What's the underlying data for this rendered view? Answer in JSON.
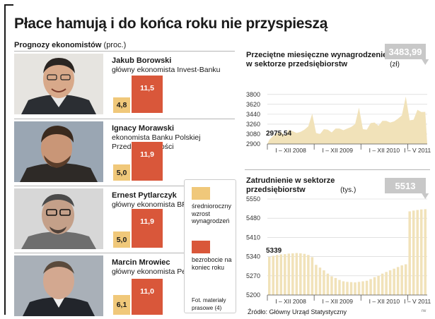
{
  "headline": "Płace hamują i do końca roku nie przyspieszą",
  "forecasts": {
    "title": "Prognozy ekonomistów",
    "unit": "(proc.)",
    "people": [
      {
        "name": "Jakub Borowski",
        "role": "główny ekonomista Invest-Banku",
        "wage_growth": 4.8,
        "unemployment": 11.5,
        "wage_label": "4,8",
        "unemp_label": "11,5"
      },
      {
        "name": "Ignacy Morawski",
        "role": "ekonomista Banku Polskiej Przedsiębiorczości",
        "wage_growth": 5.0,
        "unemployment": 11.9,
        "wage_label": "5,0",
        "unemp_label": "11,9"
      },
      {
        "name": "Ernest Pytlarczyk",
        "role": "główny ekonomista BRE Banku",
        "wage_growth": 5.0,
        "unemployment": 11.9,
        "wage_label": "5,0",
        "unemp_label": "11,9"
      },
      {
        "name": "Marcin Mrowiec",
        "role": "główny ekonomista Pekao SA",
        "wage_growth": 6.1,
        "unemployment": 11.0,
        "wage_label": "6,1",
        "unemp_label": "11,0"
      }
    ],
    "legend": {
      "wage": "średnioroczny wzrost wynagrodzeń",
      "unemployment": "bezrobocie na koniec roku",
      "photo_credit": "Fot. materiały prasowe (4)"
    },
    "colors": {
      "wage": "#f0c87a",
      "unemployment": "#d9573a"
    }
  },
  "chart_data": [
    {
      "type": "area",
      "title": "Przeciętne miesięczne wynagrodzenie w sektorze przedsiębiorstw",
      "unit": "(zł)",
      "ylim": [
        2900,
        3900
      ],
      "yticks": [
        2900,
        3080,
        3260,
        3440,
        3620,
        3800
      ],
      "ytick_labels": [
        "2900",
        "3080",
        "3260",
        "3440",
        "3620",
        "3800"
      ],
      "xtick_labels": [
        "I – XII 2008",
        "I – XII 2009",
        "I – XII 2010",
        "I – V 2011"
      ],
      "start_label": "2975,54",
      "end_label": "3483,99",
      "color": "#f1e2b9",
      "series": [
        {
          "values": [
            2975.54,
            3048,
            3100,
            3120,
            3050,
            3160,
            3130,
            3100,
            3120,
            3160,
            3220,
            3450,
            3100,
            3080,
            3170,
            3160,
            3110,
            3180,
            3180,
            3150,
            3180,
            3210,
            3260,
            3560,
            3170,
            3160,
            3280,
            3290,
            3230,
            3320,
            3320,
            3290,
            3310,
            3360,
            3420,
            3760,
            3330,
            3340,
            3520,
            3480,
            3483.99
          ]
        }
      ]
    },
    {
      "type": "bar",
      "title": "Zatrudnienie w sektorze przedsiębiorstw",
      "unit": "(tys.)",
      "ylim": [
        5200,
        5550
      ],
      "yticks": [
        5200,
        5270,
        5340,
        5410,
        5480,
        5550
      ],
      "ytick_labels": [
        "5200",
        "5270",
        "5340",
        "5410",
        "5480",
        "5550"
      ],
      "xtick_labels": [
        "I – XII 2008",
        "I – XII 2009",
        "I – XII 2010",
        "I – V 2011"
      ],
      "start_label": "5339",
      "end_label": "5513",
      "color": "#f1e2b9",
      "series": [
        {
          "values": [
            5339,
            5343,
            5346,
            5348,
            5349,
            5351,
            5352,
            5353,
            5352,
            5350,
            5346,
            5338,
            5310,
            5300,
            5290,
            5278,
            5268,
            5262,
            5255,
            5250,
            5248,
            5247,
            5246,
            5248,
            5250,
            5252,
            5258,
            5265,
            5270,
            5278,
            5284,
            5290,
            5296,
            5302,
            5308,
            5312,
            5505,
            5508,
            5510,
            5512,
            5513
          ]
        }
      ]
    }
  ],
  "source": "Źródło: Główny Urząd Statystyczny",
  "credit": "rw"
}
